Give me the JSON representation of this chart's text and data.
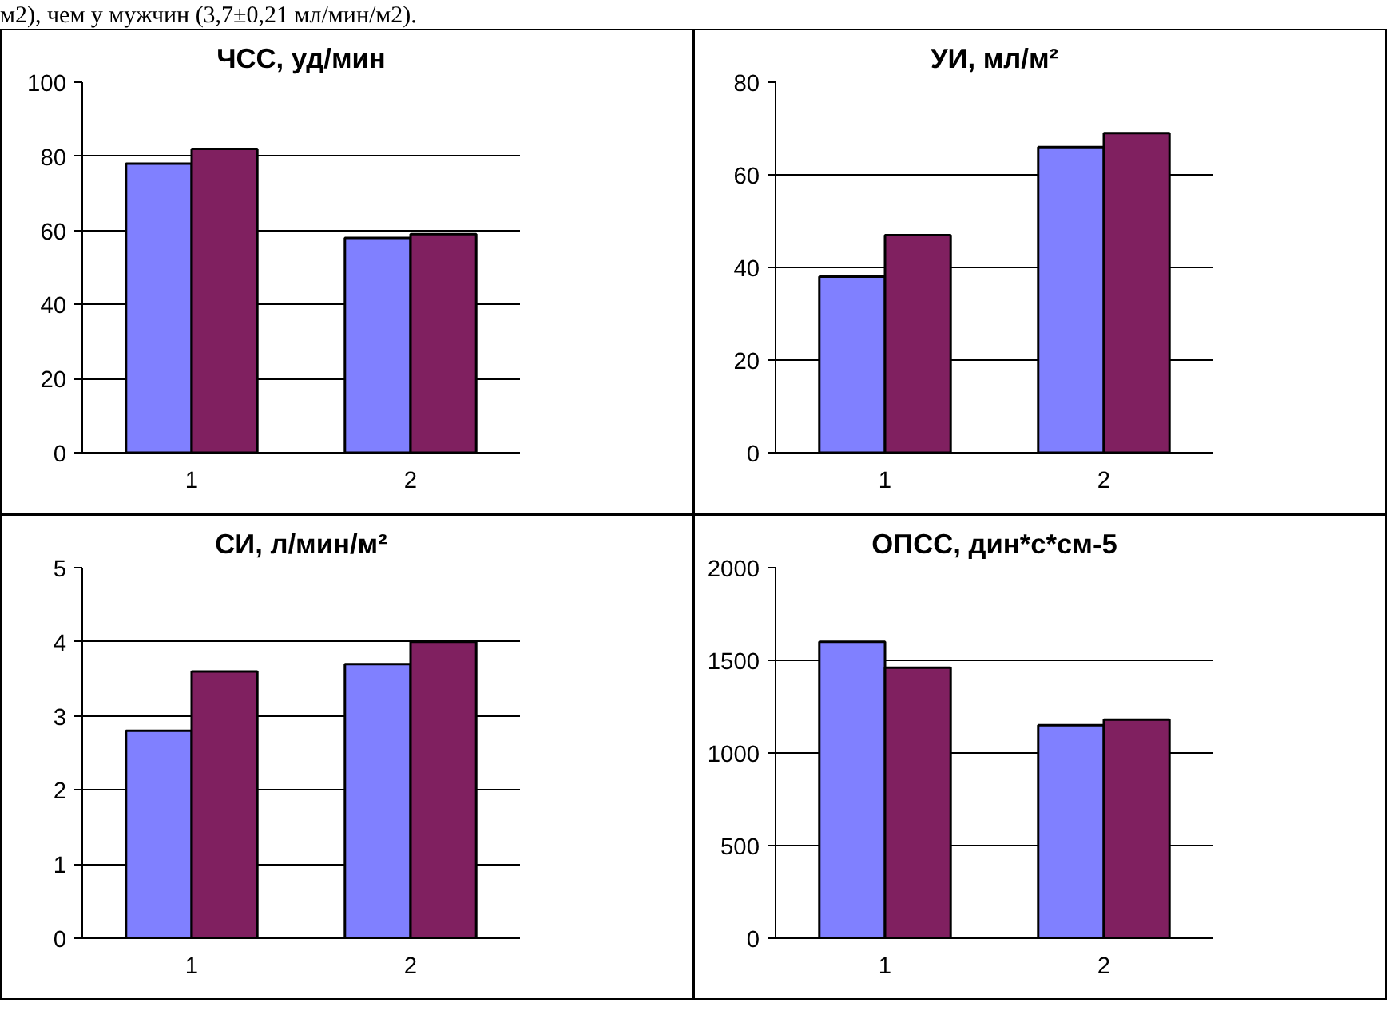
{
  "chart_data": [
    {
      "type": "bar",
      "title": "ЧСС, уд/мин",
      "categories": [
        "1",
        "2"
      ],
      "annotations": [
        "м2), чем у мужчин (3,7±0,21 мл/мин/м2)."
      ],
      "ylim": [
        0,
        100
      ],
      "yticks": [
        0,
        20,
        40,
        60,
        80,
        100
      ],
      "grid": "y",
      "series": [
        {
          "color": "#8080ff",
          "values": [
            78,
            58
          ]
        },
        {
          "color": "#802060",
          "values": [
            82,
            59
          ]
        }
      ]
    },
    {
      "type": "bar",
      "title": "УИ, мл/м²",
      "categories": [
        "1",
        "2"
      ],
      "ylim": [
        0,
        80
      ],
      "yticks": [
        0,
        20,
        40,
        60,
        80
      ],
      "grid": "y",
      "series": [
        {
          "color": "#8080ff",
          "values": [
            38,
            66
          ]
        },
        {
          "color": "#802060",
          "values": [
            47,
            69
          ]
        }
      ]
    },
    {
      "type": "bar",
      "title": "СИ, л/мин/м²",
      "categories": [
        "1",
        "2"
      ],
      "ylim": [
        0,
        5
      ],
      "yticks": [
        0,
        1,
        2,
        3,
        4,
        5
      ],
      "grid": "y",
      "series": [
        {
          "color": "#8080ff",
          "values": [
            2.8,
            3.7
          ]
        },
        {
          "color": "#802060",
          "values": [
            3.6,
            4.0
          ]
        }
      ]
    },
    {
      "type": "bar",
      "title": "ОПСС, дин*с*см-5",
      "categories": [
        "1",
        "2"
      ],
      "ylim": [
        0,
        2000
      ],
      "yticks": [
        0,
        500,
        1000,
        1500,
        2000
      ],
      "grid": "y",
      "series": [
        {
          "color": "#8080ff",
          "values": [
            1600,
            1150
          ]
        },
        {
          "color": "#802060",
          "values": [
            1460,
            1180
          ]
        }
      ]
    }
  ]
}
